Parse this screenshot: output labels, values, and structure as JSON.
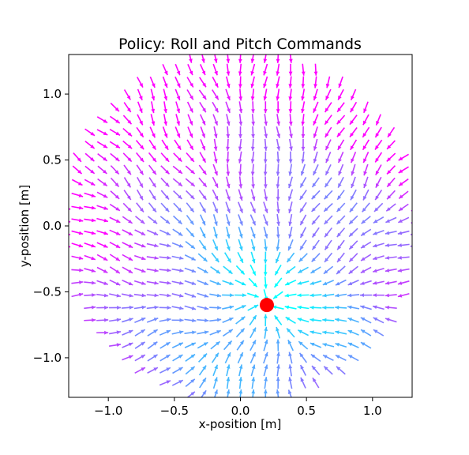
{
  "chart_data": {
    "type": "quiver",
    "title": "Policy: Roll and Pitch Commands",
    "xlabel": "x-position [m]",
    "ylabel": "y-position [m]",
    "xlim": [
      -1.3,
      1.3
    ],
    "ylim": [
      -1.3,
      1.3
    ],
    "xticks": [
      -1.0,
      -0.5,
      0.0,
      0.5,
      1.0
    ],
    "xtick_labels": [
      "−1.0",
      "−0.5",
      "0.0",
      "0.5",
      "1.0"
    ],
    "yticks": [
      1.0,
      0.5,
      0.0,
      -0.5,
      -1.0
    ],
    "ytick_labels": [
      "1.0",
      "0.5",
      "0.0",
      "−0.5",
      "−1.0"
    ],
    "grid": false,
    "target": {
      "x": 0.2,
      "y": -0.6,
      "color": "#ff0000"
    },
    "field": {
      "region": "disc",
      "center": [
        0.0,
        0.0
      ],
      "radius": 1.35,
      "spacing": 0.095,
      "vectors_point_toward": "target",
      "colormap": "cool",
      "colormap_endpoints": [
        "#00ffff",
        "#ff00ff"
      ]
    }
  }
}
